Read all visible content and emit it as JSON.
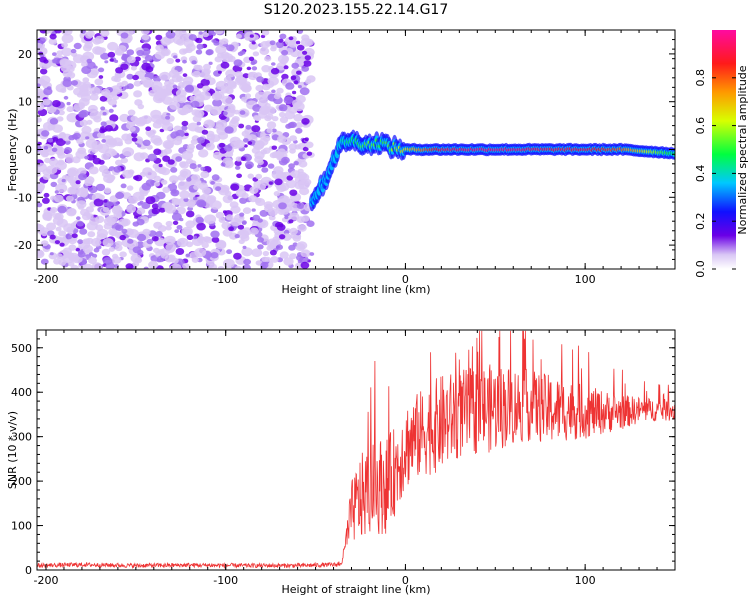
{
  "title": "S120.2023.155.22.14.G17",
  "chart_data": [
    {
      "type": "heatmap",
      "xlabel": "Height of straight line (km)",
      "ylabel": "Frequency (Hz)",
      "xlim": [
        -205,
        150
      ],
      "ylim": [
        -25,
        25
      ],
      "xticks": [
        -200,
        -100,
        0,
        100
      ],
      "yticks": [
        -20,
        -10,
        0,
        10,
        20
      ],
      "noise_region": {
        "x": [
          -205,
          -52
        ],
        "y": [
          -25,
          25
        ]
      },
      "track": {
        "x": [
          -52,
          -48,
          -44,
          -40,
          -36,
          -32,
          -26,
          -20,
          -14,
          -8,
          0,
          20,
          40,
          60,
          80,
          100,
          120,
          150
        ],
        "y": [
          -10.5,
          -8.5,
          -6,
          -2,
          1,
          2,
          1.5,
          1,
          1.5,
          0.5,
          0,
          0,
          0,
          0,
          0,
          0,
          0,
          -0.8
        ],
        "amplitude": [
          0.3,
          0.35,
          0.3,
          0.35,
          0.4,
          0.45,
          0.5,
          0.55,
          0.5,
          0.55,
          0.65,
          0.9,
          0.95,
          0.95,
          0.9,
          0.9,
          0.8,
          0.45
        ]
      },
      "colorbar": {
        "label": "Normalized spectral amplitude",
        "range": [
          0.0,
          1.0
        ],
        "ticks": [
          "0.0",
          "0.2",
          "0.4",
          "0.6",
          "0.8"
        ]
      }
    },
    {
      "type": "line",
      "xlabel": "Height of straight line (km)",
      "ylabel": "SNR (10 * v/v)",
      "xlim": [
        -205,
        150
      ],
      "ylim": [
        0,
        540
      ],
      "xticks": [
        -200,
        -100,
        0,
        100
      ],
      "yticks": [
        0,
        100,
        200,
        300,
        400,
        500
      ],
      "color": "#ee3333",
      "series": [
        {
          "x": [
            -205,
            -180,
            -150,
            -120,
            -90,
            -60,
            -38,
            -35,
            -30,
            -25,
            -20,
            -15,
            -10,
            -5,
            0,
            10,
            20,
            30,
            40,
            50,
            60,
            70,
            80,
            90,
            100,
            110,
            120,
            130,
            140,
            150
          ],
          "y": [
            10,
            12,
            10,
            11,
            10,
            10,
            12,
            20,
            130,
            160,
            180,
            190,
            190,
            230,
            280,
            310,
            330,
            350,
            360,
            365,
            370,
            370,
            360,
            360,
            355,
            355,
            355,
            360,
            360,
            360
          ],
          "spread": [
            5,
            5,
            5,
            5,
            5,
            5,
            5,
            10,
            70,
            100,
            100,
            110,
            110,
            100,
            100,
            100,
            110,
            100,
            100,
            100,
            90,
            80,
            80,
            70,
            60,
            50,
            40,
            30,
            25,
            25
          ]
        }
      ]
    }
  ]
}
